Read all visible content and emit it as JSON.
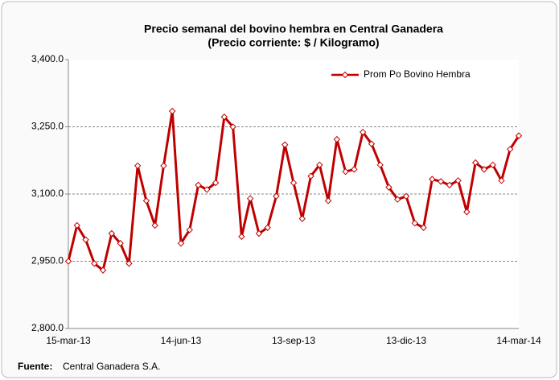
{
  "chart_data": {
    "type": "line",
    "title": "Precio semanal del bovino  hembra en Central Ganadera",
    "subtitle": "(Precio corriente: $ / Kilogramo)",
    "categories": [
      "15-mar-13",
      null,
      null,
      null,
      null,
      null,
      null,
      null,
      null,
      null,
      null,
      null,
      null,
      "14-jun-13",
      null,
      null,
      null,
      null,
      null,
      null,
      null,
      null,
      null,
      null,
      null,
      null,
      "13-sep-13",
      null,
      null,
      null,
      null,
      null,
      null,
      null,
      null,
      null,
      null,
      null,
      null,
      "13-dic-13",
      null,
      null,
      null,
      null,
      null,
      null,
      null,
      null,
      null,
      null,
      null,
      null,
      "14-mar-14"
    ],
    "series": [
      {
        "name": "Prom Po Bovino Hembra",
        "color": "#c00000",
        "values": [
          2950,
          3030,
          2998,
          2945,
          2930,
          3012,
          2990,
          2945,
          3163,
          3085,
          3030,
          3163,
          3285,
          2990,
          3020,
          3120,
          3110,
          3125,
          3272,
          3250,
          3005,
          3090,
          3012,
          3025,
          3095,
          3210,
          3125,
          3045,
          3140,
          3165,
          3085,
          3222,
          3150,
          3155,
          3238,
          3212,
          3165,
          3115,
          3088,
          3095,
          3035,
          3025,
          3133,
          3128,
          3120,
          3130,
          3060,
          3170,
          3155,
          3165,
          3130,
          3200,
          3230
        ]
      }
    ],
    "ylim": [
      2800,
      3400
    ],
    "yticks": [
      {
        "value": 2800,
        "label": "2,800.0"
      },
      {
        "value": 2950,
        "label": "2,950.0"
      },
      {
        "value": 3100,
        "label": "3,100.0"
      },
      {
        "value": 3250,
        "label": "3,250.0"
      },
      {
        "value": 3400,
        "label": "3,400.0"
      }
    ],
    "grid": true,
    "legend": "top-right",
    "source_label": "Fuente:",
    "source_text": "Central Ganadera S.A."
  }
}
